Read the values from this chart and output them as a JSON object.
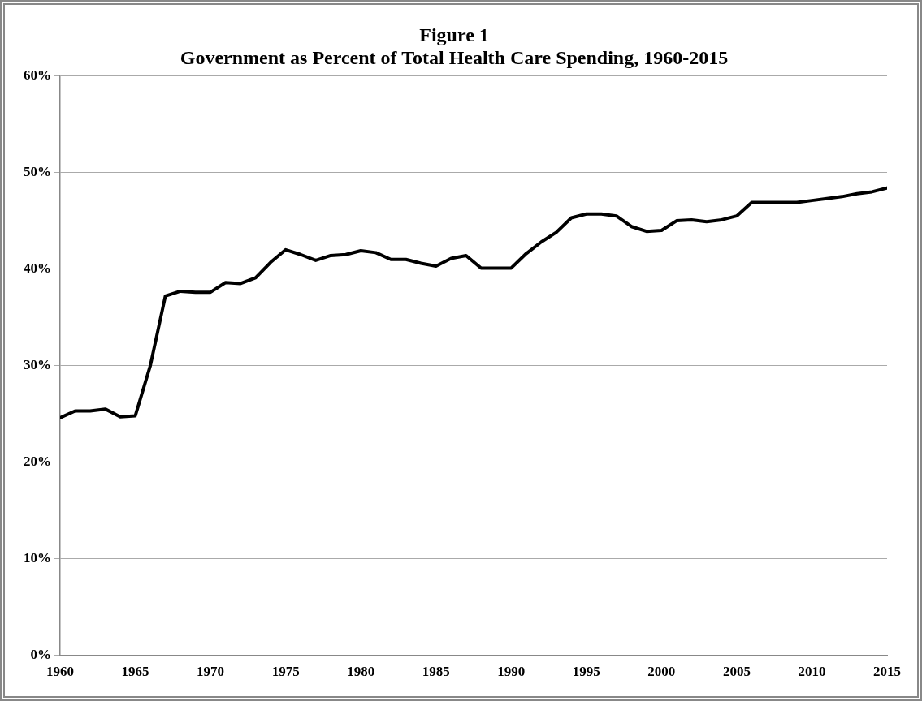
{
  "chart_data": {
    "type": "line",
    "title": "Figure 1",
    "subtitle": "Government as Percent of Total Health Care Spending, 1960-2015",
    "x": [
      1960,
      1961,
      1962,
      1963,
      1964,
      1965,
      1966,
      1967,
      1968,
      1969,
      1970,
      1971,
      1972,
      1973,
      1974,
      1975,
      1976,
      1977,
      1978,
      1979,
      1980,
      1981,
      1982,
      1983,
      1984,
      1985,
      1986,
      1987,
      1988,
      1989,
      1990,
      1991,
      1992,
      1993,
      1994,
      1995,
      1996,
      1997,
      1998,
      1999,
      2000,
      2001,
      2002,
      2003,
      2004,
      2005,
      2006,
      2007,
      2008,
      2009,
      2010,
      2011,
      2012,
      2013,
      2014,
      2015
    ],
    "series": [
      {
        "color": "#000000",
        "values": [
          24.6,
          25.3,
          25.3,
          25.5,
          24.7,
          24.8,
          30.0,
          37.2,
          37.7,
          37.6,
          37.6,
          38.6,
          38.5,
          39.1,
          40.7,
          42.0,
          41.5,
          40.9,
          41.4,
          41.5,
          41.9,
          41.7,
          41.0,
          41.0,
          40.6,
          40.3,
          41.1,
          41.4,
          40.1,
          40.1,
          40.1,
          41.6,
          42.8,
          43.8,
          45.3,
          45.7,
          45.7,
          45.5,
          44.4,
          43.9,
          44.0,
          45.0,
          45.1,
          44.9,
          45.1,
          45.5,
          46.9,
          46.9,
          46.9,
          46.9,
          47.1,
          47.3,
          47.5,
          47.8,
          48.0,
          48.4
        ]
      }
    ],
    "xlim": [
      1960,
      2015
    ],
    "xticks": [
      1960,
      1965,
      1970,
      1975,
      1980,
      1985,
      1990,
      1995,
      2000,
      2005,
      2010,
      2015
    ],
    "ylim": [
      0,
      60
    ],
    "yticks": [
      {
        "value": 0,
        "label": "0%"
      },
      {
        "value": 10,
        "label": "10%"
      },
      {
        "value": 20,
        "label": "20%"
      },
      {
        "value": 30,
        "label": "30%"
      },
      {
        "value": 40,
        "label": "40%"
      },
      {
        "value": 50,
        "label": "50%"
      },
      {
        "value": 60,
        "label": "60%"
      }
    ],
    "grid": "y",
    "legend": false,
    "marker": "none",
    "line_style": "solid"
  }
}
